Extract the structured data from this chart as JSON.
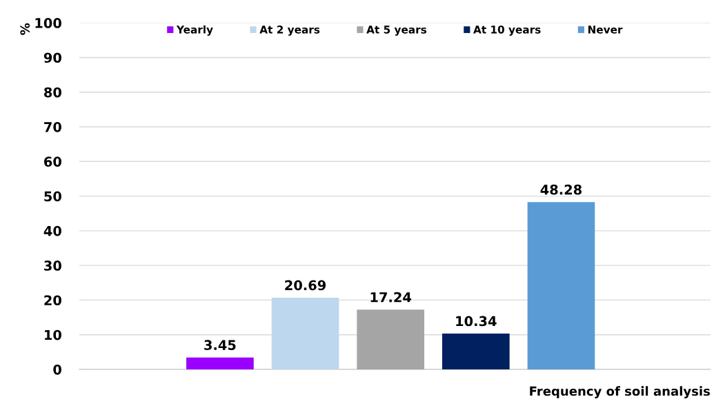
{
  "chart_data": {
    "type": "bar",
    "xlabel": "Frequency of soil analysis",
    "ylabel": "%",
    "categories": [
      null
    ],
    "series": [
      {
        "name": "Yearly",
        "color": "#9900ff",
        "values": [
          3.45
        ]
      },
      {
        "name": "At 2 years",
        "color": "#bdd7ee",
        "values": [
          20.69
        ]
      },
      {
        "name": "At 5 years",
        "color": "#a5a5a5",
        "values": [
          17.24
        ]
      },
      {
        "name": "At 10 years",
        "color": "#002060",
        "values": [
          10.34
        ]
      },
      {
        "name": "Never",
        "color": "#5b9bd5",
        "values": [
          48.28
        ]
      }
    ],
    "ylim": [
      0,
      100
    ],
    "yticks": [
      0,
      10,
      20,
      30,
      40,
      50,
      60,
      70,
      80,
      90,
      100
    ],
    "grid": "y",
    "legend": "top",
    "data_labels": true
  }
}
